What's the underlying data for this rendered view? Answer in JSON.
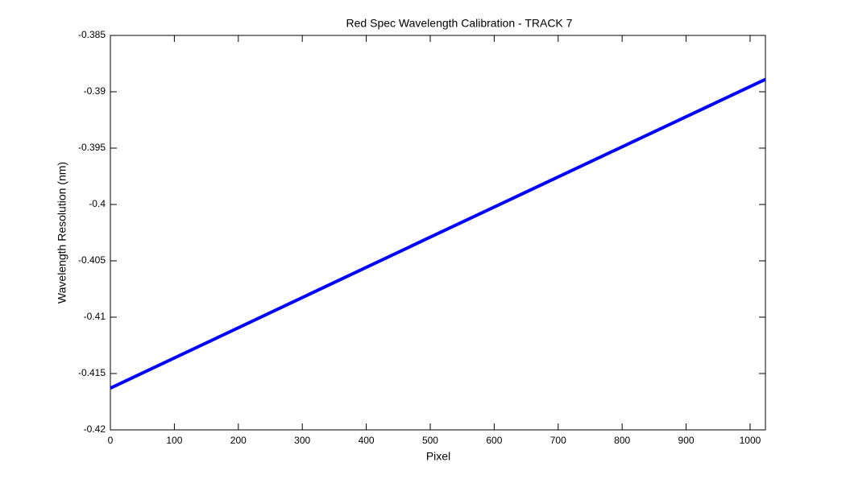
{
  "chart_data": {
    "type": "line",
    "title": "Red Spec Wavelength Calibration - TRACK 7",
    "xlabel": "Pixel",
    "ylabel": "Wavelength Resolution (nm)",
    "x": [
      0,
      500,
      1024
    ],
    "series": [
      {
        "name": "Wavelength Resolution",
        "color": "#0000ff",
        "values": [
          -0.4163,
          -0.4029,
          -0.3889
        ]
      }
    ],
    "xlim": [
      0,
      1024
    ],
    "ylim": [
      -0.42,
      -0.385
    ],
    "xticks": [
      0,
      100,
      200,
      300,
      400,
      500,
      600,
      700,
      800,
      900,
      1000
    ],
    "yticks": [
      -0.42,
      -0.415,
      -0.41,
      -0.405,
      -0.4,
      -0.395,
      -0.39,
      -0.385
    ],
    "grid": false
  }
}
